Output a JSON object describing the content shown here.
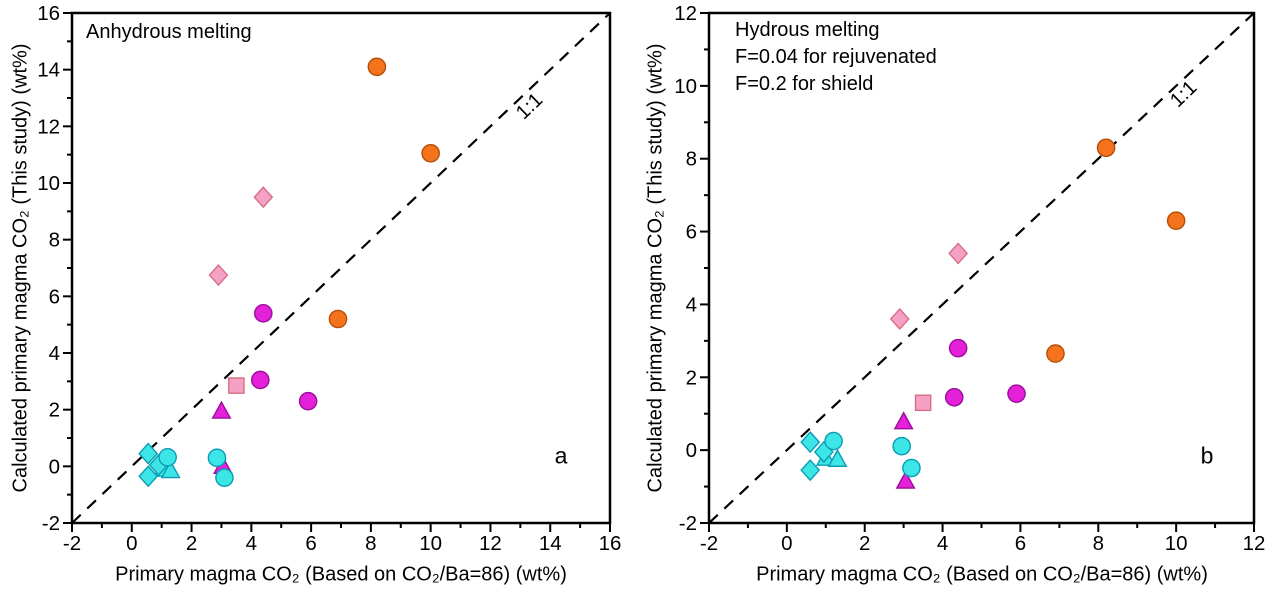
{
  "colors": {
    "frame": "#000000",
    "background": "#ffffff",
    "dashed_line": "#000000",
    "orange_fill": "#F5731D",
    "orange_stroke": "#B34E08",
    "magenta_fill": "#E420D8",
    "magenta_stroke": "#99109B",
    "pink_fill": "#F5A0C5",
    "pink_stroke": "#D76F84",
    "cyan_fill": "#3CE6E6",
    "cyan_stroke": "#0B9CB4"
  },
  "chart_data": [
    {
      "type": "scatter",
      "panel_id": "a",
      "corner_label": "a",
      "annotation": [
        "Anhydrous melting"
      ],
      "xlabel": "Primary magma CO₂ (Based on CO₂/Ba=86) (wt%)",
      "ylabel": "Calculated primary magma CO₂ (This study) (wt%)",
      "xlim": [
        -2,
        16
      ],
      "ylim": [
        -2,
        16
      ],
      "tick_step": 2,
      "minor_step": 1,
      "grid": false,
      "legend": "none",
      "ref_line": {
        "label": "1:1",
        "from": [
          -2,
          -2
        ],
        "to": [
          16,
          16
        ],
        "style": "dashed",
        "label_pos": [
          13.45,
          12.55
        ],
        "label_angle": -44
      },
      "series": [
        {
          "name": "pink-diamond",
          "marker": "diamond",
          "color": "pink",
          "points": [
            [
              4.4,
              9.5
            ],
            [
              2.9,
              6.75
            ]
          ]
        },
        {
          "name": "pink-square",
          "marker": "square",
          "color": "pink",
          "points": [
            [
              3.5,
              2.85
            ]
          ]
        },
        {
          "name": "magenta-circle",
          "marker": "circle",
          "color": "magenta",
          "points": [
            [
              4.4,
              5.4
            ],
            [
              4.3,
              3.05
            ],
            [
              5.9,
              2.3
            ]
          ]
        },
        {
          "name": "magenta-triangle",
          "marker": "triangle",
          "color": "magenta",
          "points": [
            [
              3.0,
              1.95
            ],
            [
              3.05,
              0.0
            ]
          ]
        },
        {
          "name": "orange-circle",
          "marker": "circle",
          "color": "orange",
          "points": [
            [
              8.2,
              14.1
            ],
            [
              10.0,
              11.05
            ],
            [
              6.9,
              5.2
            ]
          ]
        },
        {
          "name": "cyan-triangle",
          "marker": "triangle",
          "color": "cyan",
          "points": [
            [
              1.05,
              -0.1
            ],
            [
              1.3,
              -0.15
            ]
          ]
        },
        {
          "name": "cyan-diamond",
          "marker": "diamond",
          "color": "cyan",
          "points": [
            [
              0.55,
              0.45
            ],
            [
              0.9,
              0.05
            ],
            [
              0.55,
              -0.35
            ]
          ]
        },
        {
          "name": "cyan-circle",
          "marker": "circle",
          "color": "cyan",
          "points": [
            [
              1.2,
              0.32
            ],
            [
              2.85,
              0.3
            ],
            [
              3.1,
              -0.4
            ]
          ]
        }
      ]
    },
    {
      "type": "scatter",
      "panel_id": "b",
      "corner_label": "b",
      "annotation": [
        "Hydrous melting",
        "F=0.04 for rejuvenated",
        "F=0.2 for shield"
      ],
      "xlabel": "Primary magma CO₂ (Based on CO₂/Ba=86) (wt%)",
      "ylabel": "Calculated primary magma CO₂ (This study) (wt%)",
      "xlim": [
        -2,
        12
      ],
      "ylim": [
        -2,
        12
      ],
      "tick_step": 2,
      "minor_step": 1,
      "grid": false,
      "legend": "none",
      "ref_line": {
        "label": "1:1",
        "from": [
          -2,
          -2
        ],
        "to": [
          12,
          12
        ],
        "style": "dashed",
        "label_pos": [
          10.3,
          9.65
        ],
        "label_angle": -44
      },
      "series": [
        {
          "name": "pink-diamond",
          "marker": "diamond",
          "color": "pink",
          "points": [
            [
              4.4,
              5.4
            ],
            [
              2.9,
              3.6
            ]
          ]
        },
        {
          "name": "pink-square",
          "marker": "square",
          "color": "pink",
          "points": [
            [
              3.5,
              1.3
            ]
          ]
        },
        {
          "name": "magenta-circle",
          "marker": "circle",
          "color": "magenta",
          "points": [
            [
              4.4,
              2.8
            ],
            [
              4.3,
              1.45
            ],
            [
              5.9,
              1.55
            ]
          ]
        },
        {
          "name": "magenta-triangle",
          "marker": "triangle",
          "color": "magenta",
          "points": [
            [
              3.0,
              0.78
            ],
            [
              3.05,
              -0.85
            ]
          ]
        },
        {
          "name": "orange-circle",
          "marker": "circle",
          "color": "orange",
          "points": [
            [
              8.2,
              8.3
            ],
            [
              10.0,
              6.3
            ],
            [
              6.9,
              2.65
            ]
          ]
        },
        {
          "name": "cyan-triangle",
          "marker": "triangle",
          "color": "cyan",
          "points": [
            [
              1.0,
              -0.22
            ],
            [
              1.3,
              -0.25
            ]
          ]
        },
        {
          "name": "cyan-diamond",
          "marker": "diamond",
          "color": "cyan",
          "points": [
            [
              0.6,
              0.22
            ],
            [
              0.95,
              -0.05
            ],
            [
              0.6,
              -0.55
            ]
          ]
        },
        {
          "name": "cyan-circle",
          "marker": "circle",
          "color": "cyan",
          "points": [
            [
              1.2,
              0.25
            ],
            [
              2.95,
              0.11
            ],
            [
              3.2,
              -0.49
            ]
          ]
        }
      ]
    }
  ]
}
